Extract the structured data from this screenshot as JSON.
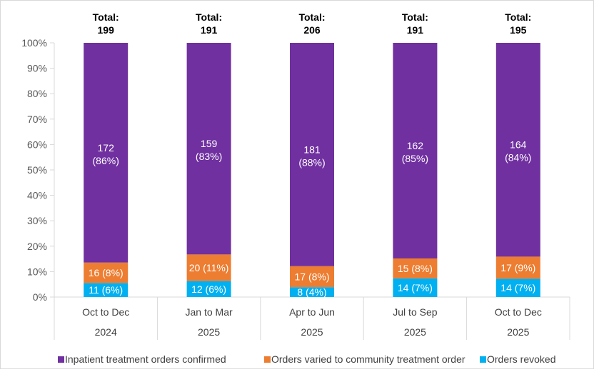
{
  "chart_data": {
    "type": "bar",
    "stacked": "percent",
    "categories": [
      "Oct to Dec",
      "Jan to Mar",
      "Apr to Jun",
      "Jul to Sep",
      "Oct to Dec"
    ],
    "category_years": [
      "2024",
      "2025",
      "2025",
      "2025",
      "2025"
    ],
    "totals_label": "Total:",
    "totals": [
      199,
      191,
      206,
      191,
      195
    ],
    "series": [
      {
        "name": "Orders revoked",
        "values": [
          11,
          12,
          8,
          14,
          14
        ],
        "percents": [
          6,
          6,
          4,
          7,
          7
        ],
        "labels": [
          "11 (6%)",
          "12 (6%)",
          "8 (4%)",
          "14 (7%)",
          "14 (7%)"
        ],
        "color": "#00b0f0"
      },
      {
        "name": "Orders varied to community treatment order",
        "values": [
          16,
          20,
          17,
          15,
          17
        ],
        "percents": [
          8,
          11,
          8,
          8,
          9
        ],
        "labels": [
          "16 (8%)",
          "20 (11%)",
          "17 (8%)",
          "15 (8%)",
          "17 (9%)"
        ],
        "color": "#ed7d31"
      },
      {
        "name": "Inpatient treatment orders confirmed",
        "values": [
          172,
          159,
          181,
          162,
          164
        ],
        "percents": [
          86,
          83,
          88,
          85,
          84
        ],
        "labels": [
          "172 (86%)",
          "159 (83%)",
          "181 (88%)",
          "162 (85%)",
          "164 (84%)"
        ],
        "color": "#7030a0"
      }
    ],
    "yticks": [
      "0%",
      "10%",
      "20%",
      "30%",
      "40%",
      "50%",
      "60%",
      "70%",
      "80%",
      "90%",
      "100%"
    ],
    "ylim": [
      0,
      100
    ],
    "legend_order": [
      "Inpatient treatment orders confirmed",
      "Orders varied to community treatment order",
      "Orders revoked"
    ],
    "legend_position": "bottom",
    "grid": false
  }
}
